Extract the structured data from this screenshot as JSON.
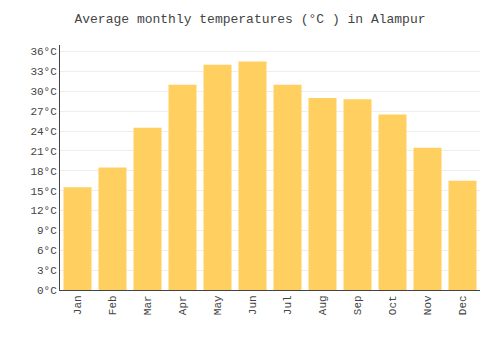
{
  "chart_data": {
    "type": "bar",
    "title": "Average monthly temperatures (°C ) in Alampur",
    "categories": [
      "Jan",
      "Feb",
      "Mar",
      "Apr",
      "May",
      "Jun",
      "Jul",
      "Aug",
      "Sep",
      "Oct",
      "Nov",
      "Dec"
    ],
    "values": [
      15.5,
      18.5,
      24.5,
      31.0,
      34.0,
      34.5,
      31.0,
      29.0,
      28.8,
      26.5,
      21.5,
      16.5
    ],
    "color": "#FFD060",
    "ylim": [
      0,
      37
    ],
    "yticks": [
      {
        "value": 0,
        "label": "0°C"
      },
      {
        "value": 3,
        "label": "3°C"
      },
      {
        "value": 6,
        "label": "6°C"
      },
      {
        "value": 9,
        "label": "9°C"
      },
      {
        "value": 12,
        "label": "12°C"
      },
      {
        "value": 15,
        "label": "15°C"
      },
      {
        "value": 18,
        "label": "18°C"
      },
      {
        "value": 21,
        "label": "21°C"
      },
      {
        "value": 24,
        "label": "24°C"
      },
      {
        "value": 27,
        "label": "27°C"
      },
      {
        "value": 30,
        "label": "30°C"
      },
      {
        "value": 33,
        "label": "33°C"
      },
      {
        "value": 36,
        "label": "36°C"
      }
    ],
    "grid": true
  }
}
